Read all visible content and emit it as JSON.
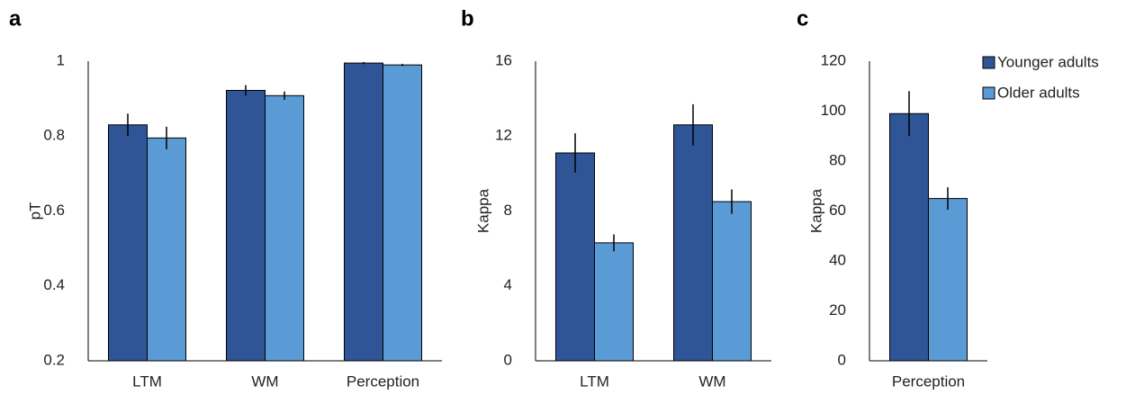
{
  "chart_data": [
    {
      "type": "bar",
      "label": "a",
      "y_label": "pT",
      "categories": [
        "LTM",
        "WM",
        "Perception"
      ],
      "series": [
        {
          "color": "#2f5597",
          "values": [
            0.83,
            0.922,
            0.995
          ],
          "errors": [
            0.03,
            0.014,
            0.003
          ]
        },
        {
          "color": "#5b9bd5",
          "values": [
            0.795,
            0.908,
            0.99
          ],
          "errors": [
            0.03,
            0.011,
            0.003
          ]
        }
      ],
      "ylim": [
        0.2,
        1
      ],
      "yticks": [
        0.2,
        0.4,
        0.6,
        0.8,
        1
      ],
      "grid": false
    },
    {
      "type": "bar",
      "label": "b",
      "y_label": "Kappa",
      "categories": [
        "LTM",
        "WM"
      ],
      "series": [
        {
          "color": "#2f5597",
          "values": [
            11.1,
            12.6
          ],
          "errors": [
            1.05,
            1.1
          ]
        },
        {
          "color": "#5b9bd5",
          "values": [
            6.3,
            8.5
          ],
          "errors": [
            0.45,
            0.65
          ]
        }
      ],
      "ylim": [
        0,
        16
      ],
      "yticks": [
        0,
        4,
        8,
        12,
        16
      ],
      "grid": false
    },
    {
      "type": "bar",
      "label": "c",
      "y_label": "Kappa",
      "categories": [
        "Perception"
      ],
      "series": [
        {
          "name": "Younger adults",
          "color": "#2f5597",
          "values": [
            99
          ],
          "errors": [
            9
          ]
        },
        {
          "name": "Older adults",
          "color": "#5b9bd5",
          "values": [
            65
          ],
          "errors": [
            4.5
          ]
        }
      ],
      "ylim": [
        0,
        120
      ],
      "yticks": [
        0,
        20,
        40,
        60,
        80,
        100,
        120
      ],
      "grid": false,
      "legend": "top-right"
    }
  ]
}
